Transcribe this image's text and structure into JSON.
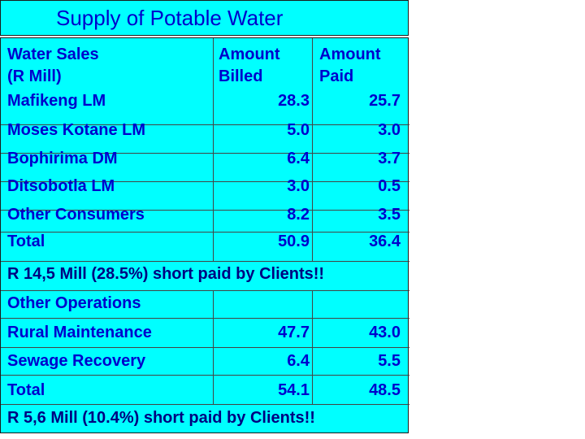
{
  "title": "Supply of Potable Water",
  "supply": {
    "headers": [
      "Water Sales\n(R Mill)",
      "Amount\nBilled",
      "Amount\nPaid"
    ],
    "header_lines": {
      "col1": [
        "Water Sales",
        "(R Mill)"
      ],
      "col2": [
        "Amount",
        "Billed"
      ],
      "col3": [
        "Amount",
        "Paid"
      ]
    },
    "rows": [
      {
        "name": "Mafikeng LM",
        "billed": "28.3",
        "paid": "25.7"
      },
      {
        "name": "Moses Kotane LM",
        "billed": "5.0",
        "paid": "3.0"
      },
      {
        "name": "Bophirima DM",
        "billed": "6.4",
        "paid": "3.7"
      },
      {
        "name": "Ditsobotla  LM",
        "billed": "3.0",
        "paid": "0.5"
      },
      {
        "name": "Other Consumers",
        "billed": "8.2",
        "paid": "3.5"
      },
      {
        "name": "Total",
        "billed": "50.9",
        "paid": "36.4"
      }
    ],
    "note": "R 14,5 Mill (28.5%) short paid by Clients!!"
  },
  "other": {
    "header": "Other Operations",
    "rows": [
      {
        "name": "Rural Maintenance",
        "billed": "47.7",
        "paid": "43.0"
      },
      {
        "name": "Sewage Recovery",
        "billed": "6.4",
        "paid": "5.5"
      },
      {
        "name": "Total",
        "billed": "54.1",
        "paid": "48.5"
      }
    ],
    "note": "R 5,6 Mill (10.4%) short paid by Clients!!"
  },
  "colors": {
    "background": "#00ffff",
    "text": "#0000cc",
    "highlight": "#000080"
  }
}
